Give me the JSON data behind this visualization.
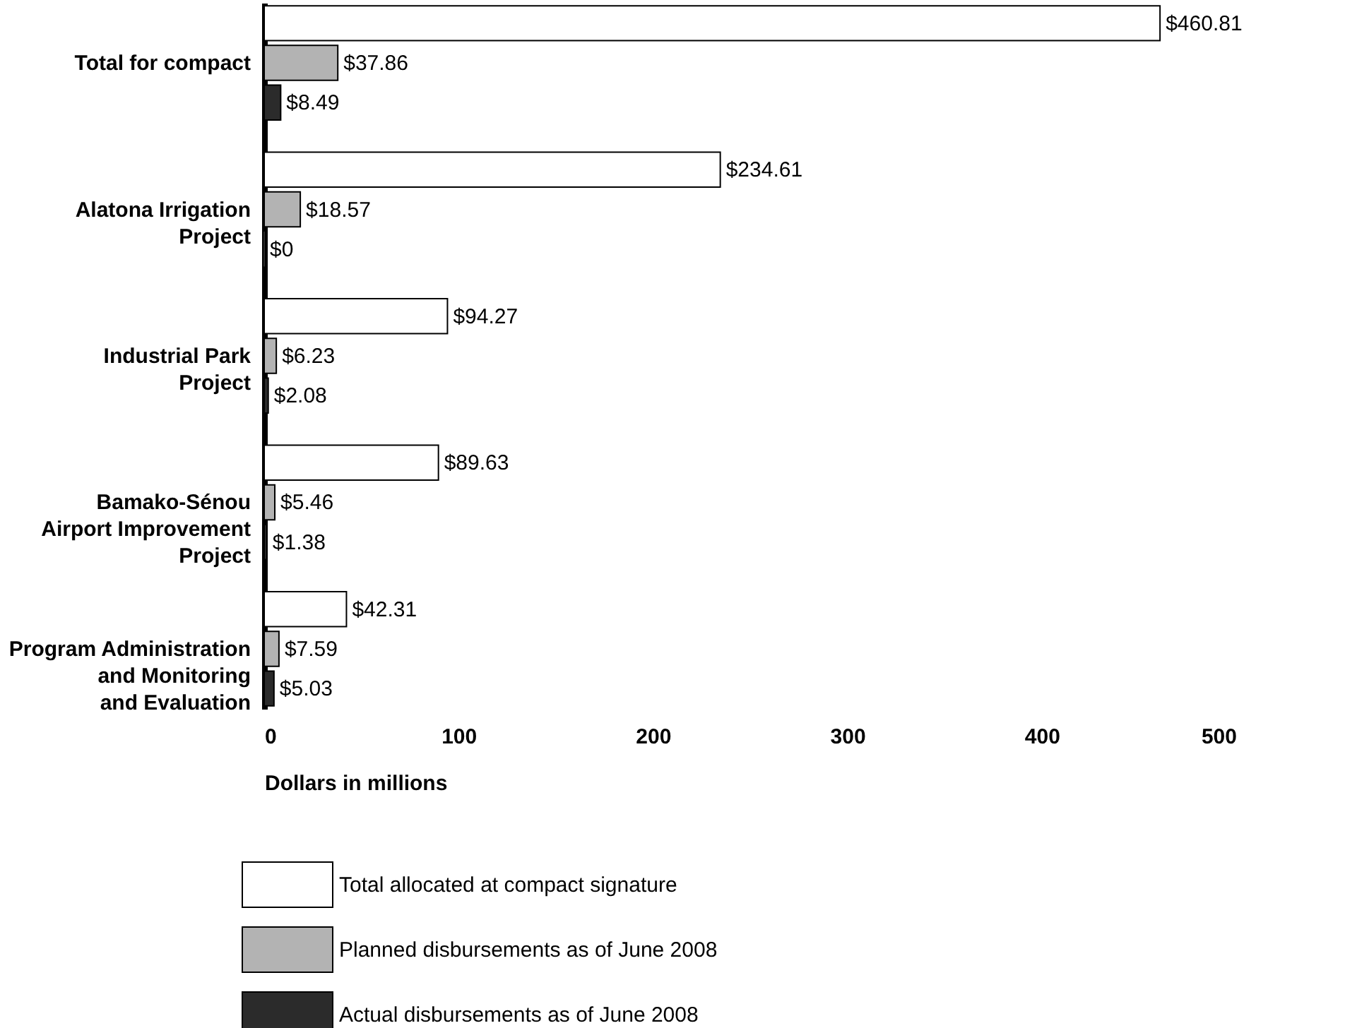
{
  "chart_data": {
    "type": "bar",
    "orientation": "horizontal",
    "categories": [
      "Total for compact",
      "Alatona Irrigation\nProject",
      "Industrial Park\nProject",
      "Bamako-Sénou\nAirport Improvement\nProject",
      "Program Administration\nand Monitoring\nand Evaluation"
    ],
    "series": [
      {
        "name": "Total allocated at compact signature",
        "color": "#ffffff",
        "values": [
          460.81,
          234.61,
          94.27,
          89.63,
          42.31
        ],
        "value_labels": [
          "$460.81",
          "$234.61",
          "$94.27",
          "$89.63",
          "$42.31"
        ]
      },
      {
        "name": "Planned disbursements as of June 2008",
        "color": "#b3b3b3",
        "values": [
          37.86,
          18.57,
          6.23,
          5.46,
          7.59
        ],
        "value_labels": [
          "$37.86",
          "$18.57",
          "$6.23",
          "$5.46",
          "$7.59"
        ]
      },
      {
        "name": "Actual disbursements as of June 2008",
        "color": "#2b2b2b",
        "values": [
          8.49,
          0,
          2.08,
          1.38,
          5.03
        ],
        "value_labels": [
          "$8.49",
          "$0",
          "$2.08",
          "$1.38",
          "$5.03"
        ]
      }
    ],
    "xlabel": "Dollars in millions",
    "xlim": [
      0,
      500
    ],
    "xticks": [
      0,
      100,
      200,
      300,
      400,
      500
    ],
    "grid": false,
    "legend": "bottom"
  }
}
